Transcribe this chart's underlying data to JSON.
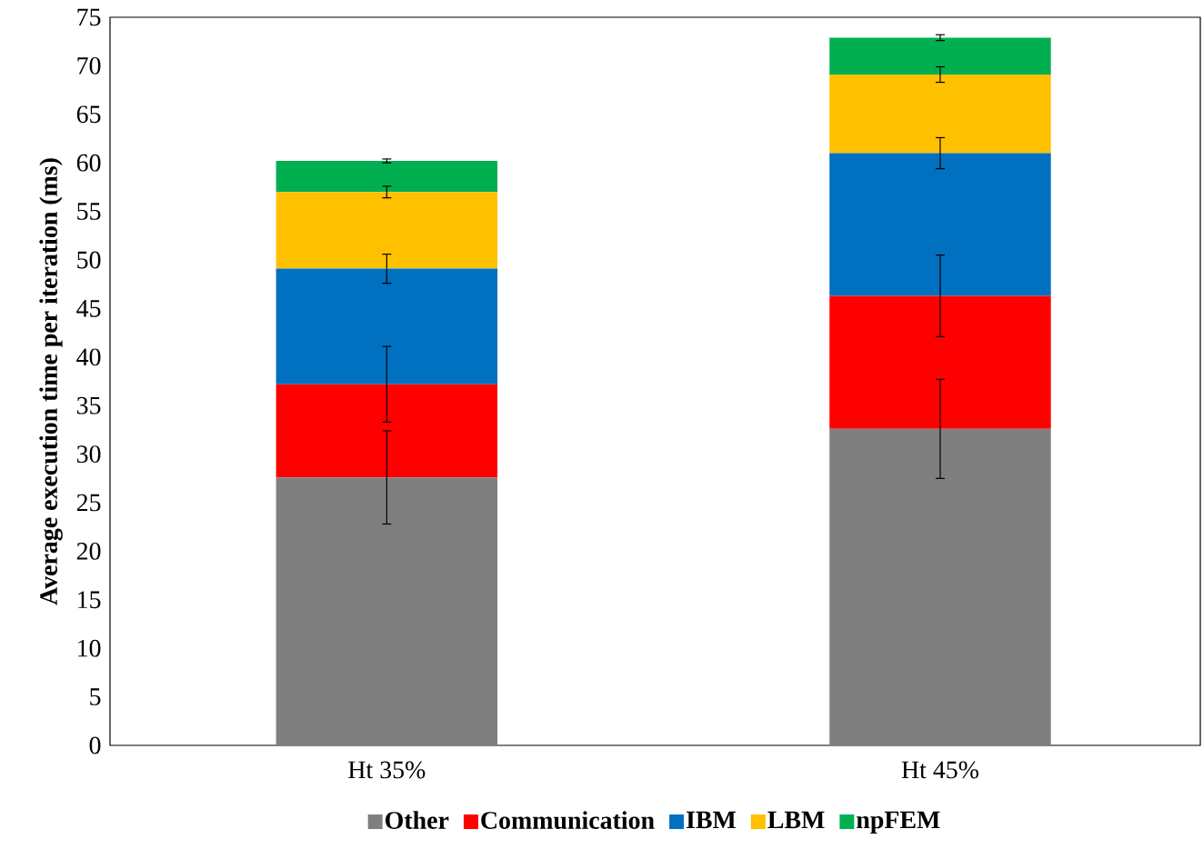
{
  "chart_data": {
    "type": "bar",
    "stacked": true,
    "ylabel": "Average execution time per iteration (ms)",
    "categories": [
      "Ht 35%",
      "Ht 45%"
    ],
    "series": [
      {
        "name": "Other",
        "color": "#7f7f7f",
        "values": [
          27.6,
          32.6
        ],
        "errors": [
          4.8,
          5.1
        ]
      },
      {
        "name": "Communication",
        "color": "#ff0000",
        "values": [
          9.6,
          13.7
        ],
        "errors": [
          3.9,
          4.2
        ]
      },
      {
        "name": "IBM",
        "color": "#0070c0",
        "values": [
          11.9,
          14.7
        ],
        "errors": [
          1.5,
          1.6
        ]
      },
      {
        "name": "LBM",
        "color": "#ffc000",
        "values": [
          7.9,
          8.1
        ],
        "errors": [
          0.6,
          0.8
        ]
      },
      {
        "name": "npFEM",
        "color": "#00b050",
        "values": [
          3.2,
          3.8
        ],
        "errors": [
          0.2,
          0.3
        ]
      }
    ],
    "ylim": [
      0,
      75
    ],
    "yticks": [
      0,
      5,
      10,
      15,
      20,
      25,
      30,
      35,
      40,
      45,
      50,
      55,
      60,
      65,
      70,
      75
    ],
    "grid": false,
    "legend": "bottom"
  }
}
